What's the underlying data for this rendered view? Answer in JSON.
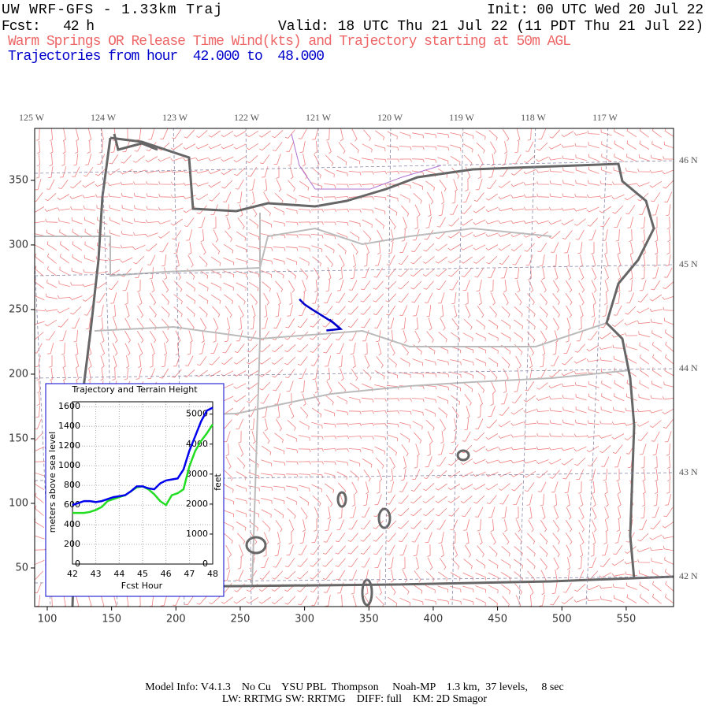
{
  "header": {
    "title": "UW WRF-GFS - 1.33km Traj",
    "init": "Init: 00 UTC Wed 20 Jul 22",
    "fcst": "Fcst:   42 h",
    "valid": "Valid: 18 UTC Thu 21 Jul 22 (11 PDT Thu 21 Jul 22)",
    "subtitle": "Warm Springs OR Release Time Wind(kts) and Trajectory starting at 50m AGL",
    "trajectory_hours": "Trajectories from hour  42.000 to  48.000"
  },
  "map": {
    "xlim": [
      90.2,
      586.8
    ],
    "ylim": [
      20.1,
      390.2
    ],
    "xticks": [
      100,
      150,
      200,
      250,
      300,
      350,
      400,
      450,
      500,
      550
    ],
    "yticks": [
      50,
      100,
      150,
      200,
      250,
      300,
      350
    ],
    "lon_labels": [
      "125 W",
      "124 W",
      "123 W",
      "122 W",
      "121 W",
      "120 W",
      "119 W",
      "118 W",
      "117 W"
    ],
    "lat_labels": [
      "46 N",
      "45 N",
      "44 N",
      "43 N",
      "42 N"
    ],
    "trajectory": {
      "color": "#0000cc",
      "x": [
        328,
        322,
        314,
        306,
        300,
        297,
        296
      ],
      "y": [
        235,
        240,
        245,
        250,
        254,
        257,
        258
      ]
    }
  },
  "chart_data": {
    "type": "line",
    "title": "Trajectory and Terrain Height",
    "x_label": "Fcst Hour",
    "y_label": "meters above sea level",
    "y2_label": "feet",
    "x": [
      42,
      42.25,
      42.5,
      42.75,
      43,
      43.25,
      43.5,
      43.75,
      44,
      44.25,
      44.5,
      44.75,
      45,
      45.25,
      45.5,
      45.75,
      46,
      46.25,
      46.5,
      46.75,
      47,
      47.25,
      47.5,
      47.75,
      48
    ],
    "xlim": [
      42,
      48
    ],
    "xticks": [
      42,
      43,
      44,
      45,
      46,
      47,
      48
    ],
    "ylim": [
      0,
      1650
    ],
    "yticks": [
      0,
      200,
      400,
      600,
      800,
      1000,
      1200,
      1400,
      1600
    ],
    "y2lim": [
      0,
      5413
    ],
    "y2ticks": [
      0,
      1000,
      2000,
      3000,
      4000,
      5000
    ],
    "series": [
      {
        "color": "#0000ee",
        "values": [
          600,
          620,
          640,
          640,
          630,
          640,
          660,
          680,
          690,
          700,
          740,
          790,
          790,
          770,
          760,
          820,
          850,
          860,
          870,
          960,
          1150,
          1300,
          1450,
          1560,
          1590
        ]
      },
      {
        "color": "#22dd22",
        "values": [
          520,
          520,
          520,
          530,
          550,
          580,
          640,
          660,
          680,
          700,
          740,
          780,
          790,
          760,
          710,
          640,
          600,
          700,
          720,
          760,
          990,
          1150,
          1250,
          1330,
          1420
        ]
      }
    ]
  },
  "footer": {
    "line1": "Model Info: V4.1.3    No Cu    YSU PBL  Thompson     Noah-MP    1.3 km,  37 levels,     8 sec",
    "line2": "LW: RRTMG SW: RRTMG    DIFF: full    KM: 2D Smagor"
  }
}
